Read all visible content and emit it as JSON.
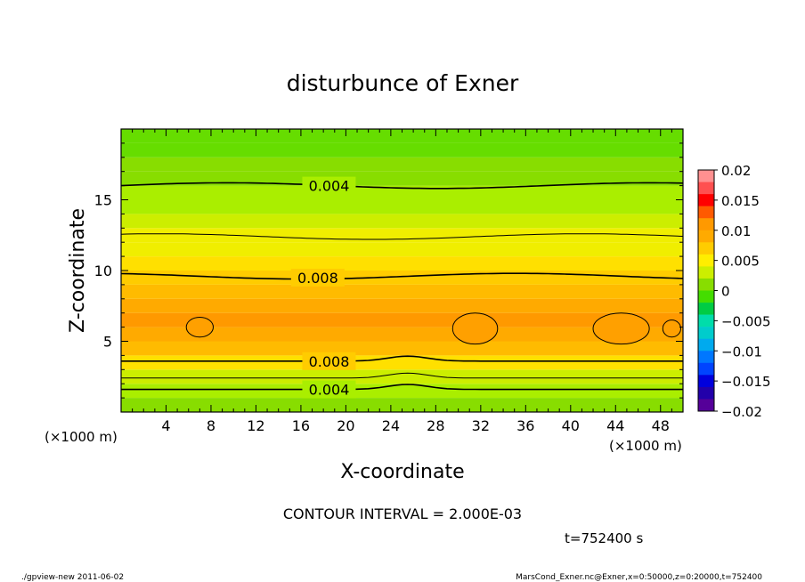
{
  "chart_data": {
    "type": "heatmap",
    "title": "disturbunce of Exner",
    "xlabel": "X-coordinate",
    "ylabel": "Z-coordinate",
    "x_unit": "(×1000 m)",
    "x_unit_right": "(×1000 m)",
    "xlim": [
      0,
      50
    ],
    "ylim": [
      0,
      20
    ],
    "x_ticks": [
      4,
      8,
      12,
      16,
      20,
      24,
      28,
      32,
      36,
      40,
      44,
      48
    ],
    "y_ticks": [
      5,
      10,
      15
    ],
    "contour_interval_text": "CONTOUR INTERVAL = 2.000E-03",
    "time_text": "t=752400 s",
    "contour_labels": [
      {
        "text": "0.004",
        "x": 18.5,
        "z": 16.0
      },
      {
        "text": "0.008",
        "x": 17.5,
        "z": 9.5
      },
      {
        "text": "0.008",
        "x": 18.5,
        "z": 3.6
      },
      {
        "text": "0.004",
        "x": 18.5,
        "z": 1.6
      }
    ],
    "vertical_profile": {
      "z": [
        0.5,
        1.5,
        2.5,
        3.5,
        4.5,
        5.5,
        6.5,
        7.5,
        8.5,
        9.5,
        10.5,
        11.5,
        12.5,
        13.5,
        14.5,
        15.5,
        16.5,
        17.5,
        18.5,
        19.5
      ],
      "value": [
        0.003,
        0.004,
        0.005,
        0.007,
        0.009,
        0.0105,
        0.011,
        0.0105,
        0.009,
        0.008,
        0.007,
        0.0065,
        0.006,
        0.005,
        0.0045,
        0.004,
        0.0035,
        0.003,
        0.0028,
        0.0026
      ]
    },
    "colorbar": {
      "ticks": [
        "0.02",
        "0.015",
        "0.01",
        "0.005",
        "0",
        "−0.005",
        "−0.01",
        "−0.015",
        "−0.02"
      ],
      "colors": [
        "#ff9090",
        "#ff5050",
        "#ff0000",
        "#ff5a00",
        "#ff9900",
        "#ffaa00",
        "#ffcc00",
        "#ffee00",
        "#ccee00",
        "#88dd00",
        "#44dd00",
        "#00cc44",
        "#00ddaa",
        "#00cccc",
        "#00aaee",
        "#0077ff",
        "#0044ff",
        "#0000dd",
        "#2200aa",
        "#550099"
      ]
    }
  },
  "footer": {
    "left": "./gpview-new  2011-06-02",
    "right": "MarsCond_Exner.nc@Exner,x=0:50000,z=0:20000,t=752400"
  }
}
